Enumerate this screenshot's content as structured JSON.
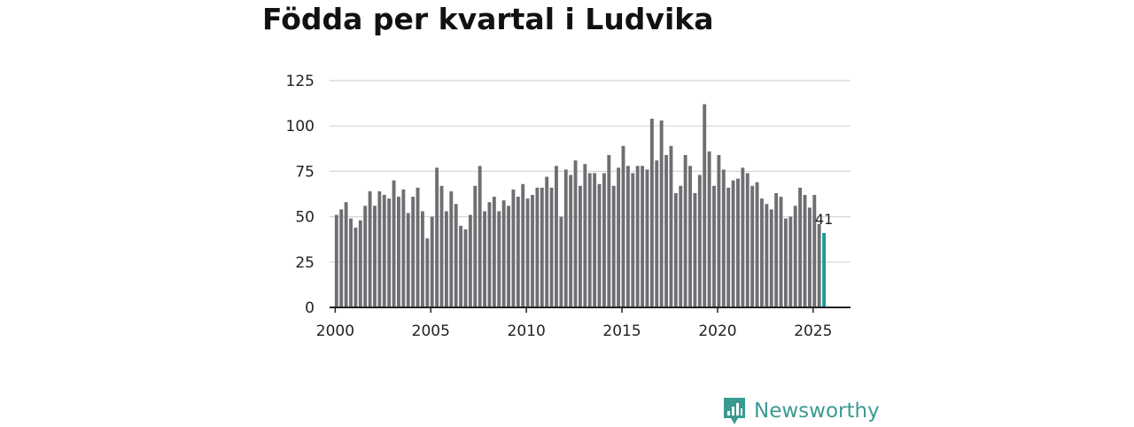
{
  "colors": {
    "bar": "#6e6e73",
    "highlight": "#179e95",
    "grid": "#d6d6d6",
    "axis": "#222222",
    "brand": "#3a9a92"
  },
  "brand": {
    "name": "Newsworthy",
    "icon": "bar-chart-logo-icon"
  },
  "chart_data": {
    "type": "bar",
    "title": "Födda per kvartal i Ludvika",
    "xlabel": "",
    "ylabel": "",
    "x_start": 2000,
    "x_end": 2025.75,
    "xlim": [
      1999.75,
      2027
    ],
    "ylim": [
      0,
      125
    ],
    "y_ticks": [
      0,
      25,
      50,
      75,
      100,
      125
    ],
    "x_ticks": [
      2000,
      2005,
      2010,
      2015,
      2020,
      2025
    ],
    "grid": true,
    "highlight_last": true,
    "last_label": "41",
    "values": [
      51,
      54,
      58,
      49,
      44,
      48,
      56,
      64,
      56,
      64,
      62,
      60,
      70,
      61,
      65,
      52,
      61,
      66,
      53,
      38,
      50,
      77,
      67,
      53,
      64,
      57,
      45,
      43,
      51,
      67,
      78,
      53,
      58,
      61,
      53,
      59,
      56,
      65,
      61,
      68,
      60,
      62,
      66,
      66,
      72,
      66,
      78,
      50,
      76,
      73,
      81,
      67,
      79,
      74,
      74,
      68,
      74,
      84,
      67,
      77,
      89,
      78,
      74,
      78,
      78,
      76,
      104,
      81,
      103,
      84,
      89,
      63,
      67,
      84,
      78,
      63,
      73,
      112,
      86,
      67,
      84,
      76,
      66,
      70,
      71,
      77,
      74,
      67,
      69,
      60,
      57,
      54,
      63,
      61,
      49,
      50,
      56,
      66,
      62,
      55,
      62,
      46,
      41
    ]
  }
}
